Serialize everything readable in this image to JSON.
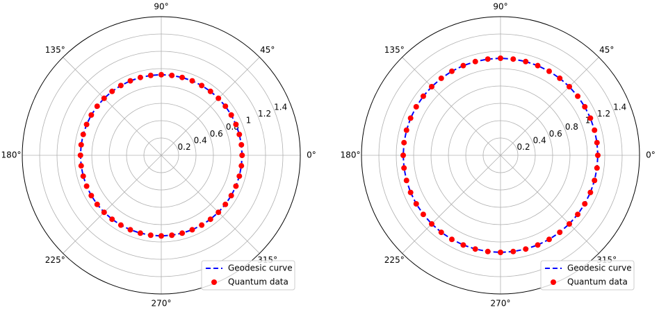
{
  "chart_data": [
    {
      "type": "polar",
      "theta": [
        0,
        7.5,
        15,
        22.5,
        30,
        37.5,
        45,
        52.5,
        60,
        67.5,
        75,
        82.5,
        90,
        97.5,
        105,
        112.5,
        120,
        127.5,
        135,
        142.5,
        150,
        157.5,
        165,
        172.5,
        180,
        187.5,
        195,
        202.5,
        210,
        217.5,
        225,
        232.5,
        240,
        247.5,
        255,
        262.5,
        270,
        277.5,
        285,
        292.5,
        300,
        307.5,
        315,
        322.5,
        330,
        337.5,
        345,
        352.5
      ],
      "series": [
        {
          "name": "Geodesic curve",
          "color": "#0000ff",
          "style": "dashed",
          "values": [
            0.93,
            0.93,
            0.93,
            0.93,
            0.93,
            0.93,
            0.93,
            0.93,
            0.93,
            0.93,
            0.93,
            0.93,
            0.93,
            0.93,
            0.93,
            0.93,
            0.93,
            0.93,
            0.93,
            0.93,
            0.93,
            0.93,
            0.93,
            0.93,
            0.93,
            0.93,
            0.93,
            0.93,
            0.93,
            0.93,
            0.93,
            0.93,
            0.93,
            0.93,
            0.93,
            0.93,
            0.93,
            0.93,
            0.93,
            0.93,
            0.93,
            0.93,
            0.93,
            0.93,
            0.93,
            0.93,
            0.93,
            0.93
          ]
        },
        {
          "name": "Quantum data",
          "color": "#ff0000",
          "style": "points",
          "values": [
            0.93,
            0.93,
            0.93,
            0.93,
            0.93,
            0.93,
            0.93,
            0.93,
            0.93,
            0.93,
            0.93,
            0.93,
            0.93,
            0.93,
            0.93,
            0.93,
            0.93,
            0.93,
            0.93,
            0.93,
            0.93,
            0.93,
            0.93,
            0.93,
            0.93,
            0.93,
            0.93,
            0.93,
            0.93,
            0.93,
            0.93,
            0.93,
            0.93,
            0.93,
            0.93,
            0.93,
            0.93,
            0.93,
            0.93,
            0.93,
            0.93,
            0.93,
            0.93,
            0.93,
            0.93,
            0.93,
            0.93,
            0.93
          ]
        }
      ],
      "rlim": [
        0,
        1.6
      ],
      "rticks": [
        0.2,
        0.4,
        0.6,
        0.8,
        1.0,
        1.2,
        1.4
      ],
      "thetaticks": [
        {
          "value": 0,
          "label": "0°"
        },
        {
          "value": 45,
          "label": "45°"
        },
        {
          "value": 90,
          "label": "90°"
        },
        {
          "value": 135,
          "label": "135°"
        },
        {
          "value": 180,
          "label": "180°"
        },
        {
          "value": 225,
          "label": "225°"
        },
        {
          "value": 270,
          "label": "270°"
        },
        {
          "value": 315,
          "label": "315°"
        }
      ],
      "grid": true,
      "legend": "lower right"
    },
    {
      "type": "polar",
      "theta": [
        0,
        7.5,
        15,
        22.5,
        30,
        37.5,
        45,
        52.5,
        60,
        67.5,
        75,
        82.5,
        90,
        97.5,
        105,
        112.5,
        120,
        127.5,
        135,
        142.5,
        150,
        157.5,
        165,
        172.5,
        180,
        187.5,
        195,
        202.5,
        210,
        217.5,
        225,
        232.5,
        240,
        247.5,
        255,
        262.5,
        270,
        277.5,
        285,
        292.5,
        300,
        307.5,
        315,
        322.5,
        330,
        337.5,
        345,
        352.5
      ],
      "series": [
        {
          "name": "Geodesic curve",
          "color": "#0000ff",
          "style": "dashed",
          "values": [
            1.12,
            1.12,
            1.12,
            1.12,
            1.12,
            1.12,
            1.12,
            1.12,
            1.12,
            1.12,
            1.12,
            1.12,
            1.12,
            1.12,
            1.12,
            1.12,
            1.12,
            1.12,
            1.12,
            1.12,
            1.12,
            1.12,
            1.12,
            1.12,
            1.12,
            1.12,
            1.12,
            1.12,
            1.12,
            1.12,
            1.12,
            1.12,
            1.12,
            1.12,
            1.12,
            1.12,
            1.12,
            1.12,
            1.12,
            1.12,
            1.12,
            1.12,
            1.12,
            1.12,
            1.12,
            1.12,
            1.12,
            1.12
          ]
        },
        {
          "name": "Quantum data",
          "color": "#ff0000",
          "style": "points",
          "values": [
            1.12,
            1.12,
            1.12,
            1.12,
            1.12,
            1.12,
            1.12,
            1.12,
            1.12,
            1.12,
            1.12,
            1.12,
            1.12,
            1.12,
            1.12,
            1.12,
            1.12,
            1.12,
            1.12,
            1.12,
            1.12,
            1.12,
            1.12,
            1.12,
            1.12,
            1.12,
            1.12,
            1.12,
            1.12,
            1.12,
            1.12,
            1.12,
            1.12,
            1.12,
            1.12,
            1.12,
            1.12,
            1.12,
            1.12,
            1.12,
            1.12,
            1.12,
            1.12,
            1.12,
            1.12,
            1.12,
            1.12,
            1.12
          ]
        }
      ],
      "rlim": [
        0,
        1.6
      ],
      "rticks": [
        0.2,
        0.4,
        0.6,
        0.8,
        1.0,
        1.2,
        1.4
      ],
      "thetaticks": [
        {
          "value": 0,
          "label": "0°"
        },
        {
          "value": 45,
          "label": "45°"
        },
        {
          "value": 90,
          "label": "90°"
        },
        {
          "value": 135,
          "label": "135°"
        },
        {
          "value": 180,
          "label": "180°"
        },
        {
          "value": 225,
          "label": "225°"
        },
        {
          "value": 270,
          "label": "270°"
        },
        {
          "value": 315,
          "label": "315°"
        }
      ],
      "grid": true,
      "legend": "lower right"
    }
  ]
}
